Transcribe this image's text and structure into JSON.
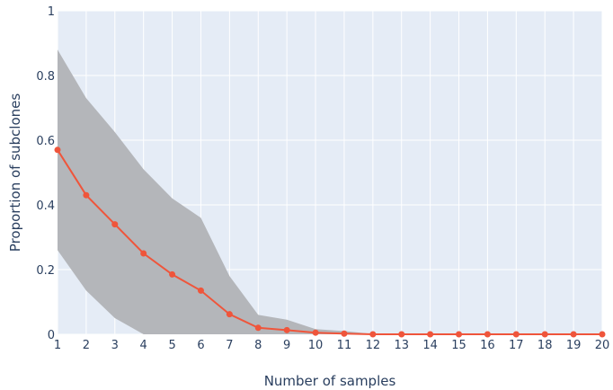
{
  "chart_data": {
    "type": "line",
    "title": "",
    "xlabel": "Number of samples",
    "ylabel": "Proportion of subclones",
    "xlim": [
      1,
      20
    ],
    "ylim": [
      0,
      1
    ],
    "grid": true,
    "legend": "none",
    "x": [
      1,
      2,
      3,
      4,
      5,
      6,
      7,
      8,
      9,
      10,
      11,
      12,
      13,
      14,
      15,
      16,
      17,
      18,
      19,
      20
    ],
    "x_tick_labels": [
      "1",
      "2",
      "3",
      "4",
      "5",
      "6",
      "7",
      "8",
      "9",
      "10",
      "11",
      "12",
      "13",
      "14",
      "15",
      "16",
      "17",
      "18",
      "19",
      "20"
    ],
    "y_ticks": [
      0,
      0.2,
      0.4,
      0.6,
      0.8,
      1
    ],
    "y_tick_labels": [
      "0",
      "0.2",
      "0.4",
      "0.6",
      "0.8",
      "1"
    ],
    "series": [
      {
        "values": [
          0.57,
          0.43,
          0.34,
          0.25,
          0.185,
          0.135,
          0.062,
          0.02,
          0.013,
          0.005,
          0.002,
          0,
          0,
          0,
          0,
          0,
          0,
          0,
          0,
          0
        ],
        "upper": [
          0.88,
          0.73,
          0.625,
          0.51,
          0.42,
          0.36,
          0.18,
          0.06,
          0.045,
          0.016,
          0.01,
          0.001,
          0,
          0,
          0,
          0,
          0,
          0,
          0,
          0
        ],
        "lower": [
          0.26,
          0.135,
          0.05,
          0,
          0,
          0,
          0,
          0,
          0,
          0,
          0,
          0,
          0,
          0,
          0,
          0,
          0,
          0,
          0,
          0
        ]
      }
    ],
    "colors": {
      "plot_bg": "#e5ecf6",
      "grid": "#ffffff",
      "band": "#b4b6ba",
      "line": "#ef553b",
      "text": "#2a3f5f"
    }
  }
}
